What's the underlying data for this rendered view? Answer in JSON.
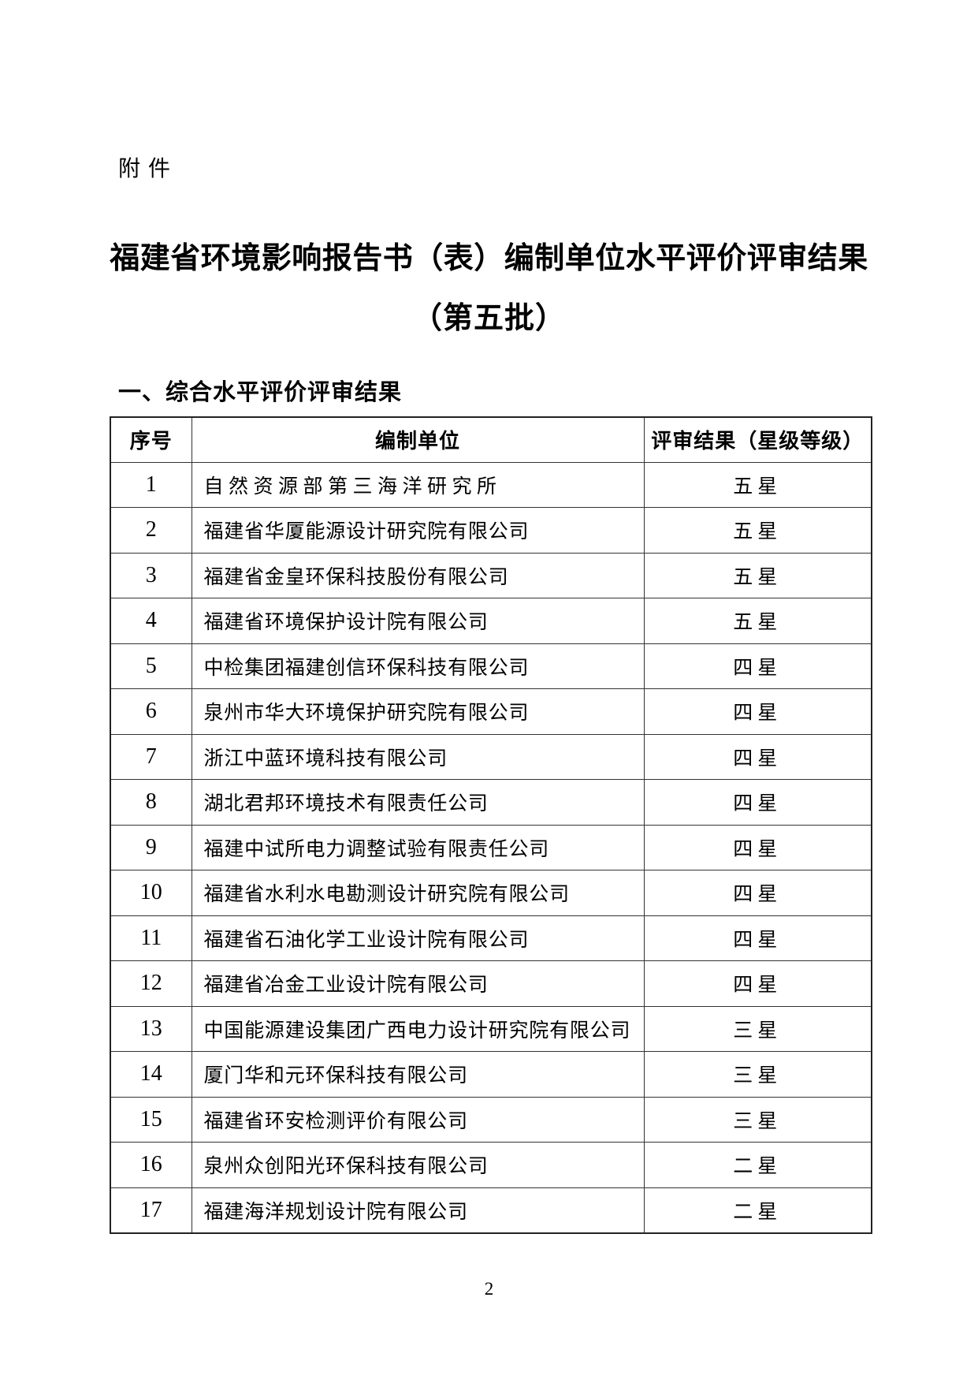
{
  "page": {
    "attachment_label": "附件",
    "title_line1": "福建省环境影响报告书（表）编制单位水平评价评审结果",
    "title_line2": "（第五批）",
    "section_heading": "一、综合水平评价评审结果",
    "page_number": "2"
  },
  "table": {
    "headers": [
      "序号",
      "编制单位",
      "评审结果（星级等级）"
    ],
    "rows": [
      {
        "no": "1",
        "unit": "自然资源部第三海洋研究所",
        "rating": "五星"
      },
      {
        "no": "2",
        "unit": "福建省华厦能源设计研究院有限公司",
        "rating": "五星"
      },
      {
        "no": "3",
        "unit": "福建省金皇环保科技股份有限公司",
        "rating": "五星"
      },
      {
        "no": "4",
        "unit": "福建省环境保护设计院有限公司",
        "rating": "五星"
      },
      {
        "no": "5",
        "unit": "中检集团福建创信环保科技有限公司",
        "rating": "四星"
      },
      {
        "no": "6",
        "unit": "泉州市华大环境保护研究院有限公司",
        "rating": "四星"
      },
      {
        "no": "7",
        "unit": "浙江中蓝环境科技有限公司",
        "rating": "四星"
      },
      {
        "no": "8",
        "unit": "湖北君邦环境技术有限责任公司",
        "rating": "四星"
      },
      {
        "no": "9",
        "unit": "福建中试所电力调整试验有限责任公司",
        "rating": "四星"
      },
      {
        "no": "10",
        "unit": "福建省水利水电勘测设计研究院有限公司",
        "rating": "四星"
      },
      {
        "no": "11",
        "unit": "福建省石油化学工业设计院有限公司",
        "rating": "四星"
      },
      {
        "no": "12",
        "unit": "福建省冶金工业设计院有限公司",
        "rating": "四星"
      },
      {
        "no": "13",
        "unit": "中国能源建设集团广西电力设计研究院有限公司",
        "rating": "三星"
      },
      {
        "no": "14",
        "unit": "厦门华和元环保科技有限公司",
        "rating": "三星"
      },
      {
        "no": "15",
        "unit": "福建省环安检测评价有限公司",
        "rating": "三星"
      },
      {
        "no": "16",
        "unit": "泉州众创阳光环保科技有限公司",
        "rating": "二星"
      },
      {
        "no": "17",
        "unit": "福建海洋规划设计院有限公司",
        "rating": "二星"
      }
    ]
  }
}
